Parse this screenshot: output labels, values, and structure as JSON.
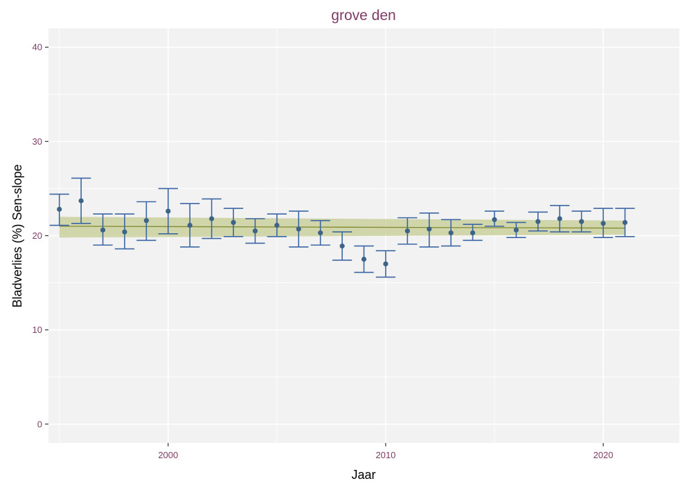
{
  "chart_data": {
    "type": "scatter",
    "title": "grove den",
    "xlabel": "Jaar",
    "ylabel": "Bladverlies (%) Sen-slope",
    "xlim": [
      1994.5,
      2023.5
    ],
    "ylim": [
      -2,
      42
    ],
    "x_ticks": [
      2000,
      2010,
      2020
    ],
    "x_tick_labels": [
      "2000",
      "2010",
      "2020"
    ],
    "y_ticks": [
      0,
      10,
      20,
      30,
      40
    ],
    "y_tick_labels": [
      "0",
      "10",
      "20",
      "30",
      "40"
    ],
    "grid": true,
    "legend": "none",
    "colors": {
      "title": "#7e3b64",
      "tick_label": "#7e3b64",
      "panel": "#f2f2f2",
      "grid": "#ffffff",
      "point": "#3d6487",
      "errorbar": "#3a66a3",
      "trend_line": "#808a2e",
      "trend_band": "#c5cb92"
    },
    "points": {
      "x": [
        1995,
        1996,
        1997,
        1998,
        1999,
        2000,
        2001,
        2002,
        2003,
        2004,
        2005,
        2006,
        2007,
        2008,
        2009,
        2010,
        2011,
        2012,
        2013,
        2014,
        2015,
        2016,
        2017,
        2018,
        2019,
        2020,
        2021
      ],
      "y": [
        22.8,
        23.7,
        20.6,
        20.4,
        21.6,
        22.6,
        21.1,
        21.8,
        21.4,
        20.5,
        21.1,
        20.7,
        20.3,
        18.9,
        17.5,
        17.0,
        20.5,
        20.7,
        20.3,
        20.3,
        21.7,
        20.6,
        21.5,
        21.8,
        21.5,
        21.3,
        21.4
      ],
      "lower": [
        21.1,
        21.3,
        19.0,
        18.6,
        19.5,
        20.2,
        18.8,
        19.7,
        19.9,
        19.2,
        19.9,
        18.8,
        19.0,
        17.4,
        16.1,
        15.6,
        19.1,
        18.8,
        18.9,
        19.5,
        21.0,
        19.8,
        20.5,
        20.4,
        20.4,
        19.8,
        19.9
      ],
      "upper": [
        24.4,
        26.1,
        22.3,
        22.3,
        23.6,
        25.0,
        23.4,
        23.9,
        22.9,
        21.8,
        22.3,
        22.6,
        21.6,
        20.4,
        18.9,
        18.4,
        21.9,
        22.4,
        21.7,
        21.2,
        22.6,
        21.4,
        22.5,
        23.2,
        22.6,
        22.9,
        22.9
      ]
    },
    "trend": {
      "x": [
        1995,
        2021
      ],
      "y": [
        21.0,
        20.8
      ],
      "band_upper": [
        22.0,
        21.6
      ],
      "band_lower": [
        19.8,
        20.1
      ]
    }
  }
}
